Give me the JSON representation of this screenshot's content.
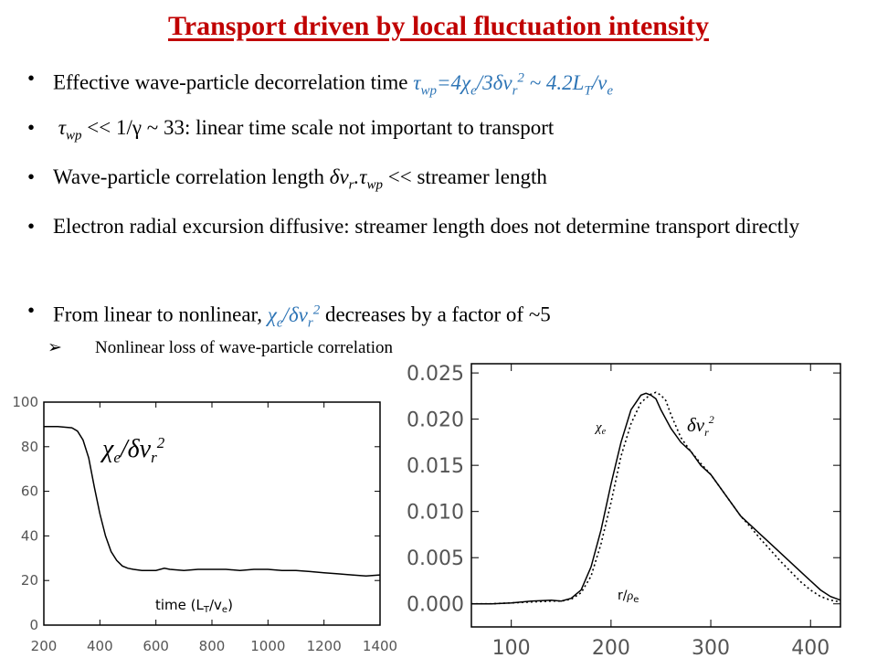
{
  "slide": {
    "title": "Transport driven by local fluctuation intensity",
    "bullets": [
      {
        "text": "Effective wave-particle decorrelation time"
      },
      {
        "lead": "τ",
        "sub": "wp",
        "text": "<< 1/γ ~ 33: linear time scale not important to transport"
      },
      {
        "text": "Wave-particle correlation length"
      },
      {
        "text": "Electron radial excursion diffusive: streamer length does not determine transport directly"
      },
      {
        "text": "From linear to nonlinear,"
      }
    ],
    "bullet1_tail": "τwp=4χe/3δvr2 ~ 4.2LT/ve",
    "bullet3_tail": "δvr.τwp << streamer length",
    "bullet5_tail": "χe/δvr2 decreases by a factor of ~5",
    "sub_bullet": "Nonlinear loss of wave-particle correlation",
    "bullet_glyph": "•",
    "sub_glyph": "➢"
  },
  "colors": {
    "title": "#c00000",
    "accent_blue": "#2e75b6",
    "axis": "#000000"
  },
  "chart_data": [
    {
      "type": "line",
      "title": "",
      "annotation": "χe/δvr2",
      "xlabel": "time (LT/ve)",
      "ylabel": "",
      "xlim": [
        200,
        1400
      ],
      "ylim": [
        0,
        100
      ],
      "xticks": [
        200,
        400,
        600,
        800,
        1000,
        1200,
        1400
      ],
      "yticks": [
        0,
        20,
        40,
        60,
        80,
        100
      ],
      "grid": false,
      "series": [
        {
          "style": "solid",
          "x": [
            200,
            250,
            300,
            320,
            340,
            360,
            380,
            400,
            420,
            440,
            460,
            480,
            500,
            520,
            550,
            600,
            630,
            650,
            700,
            750,
            800,
            850,
            900,
            950,
            1000,
            1050,
            1100,
            1150,
            1200,
            1250,
            1300,
            1350,
            1400
          ],
          "y": [
            89,
            89,
            88.5,
            87,
            83,
            75,
            62,
            50,
            40,
            33,
            29,
            26.5,
            25.5,
            25,
            24.5,
            24.5,
            25.5,
            25,
            24.5,
            25,
            25,
            25,
            24.5,
            25,
            25,
            24.5,
            24.5,
            24,
            23.5,
            23,
            22.5,
            22,
            22.5
          ]
        }
      ]
    },
    {
      "type": "line",
      "title": "",
      "xlabel": "r/ρe",
      "ylabel": "",
      "xlim": [
        60,
        430
      ],
      "ylim": [
        -0.0025,
        0.026
      ],
      "xticks": [
        100,
        200,
        300,
        400
      ],
      "yticks": [
        0.0,
        0.005,
        0.01,
        0.015,
        0.02,
        0.025
      ],
      "ytick_labels": [
        "0.000",
        "0.005",
        "0.010",
        "0.015",
        "0.020",
        "0.025"
      ],
      "xtick_labels": [
        "100",
        "200",
        "300",
        "400"
      ],
      "grid": false,
      "series": [
        {
          "name": "χe",
          "style": "solid",
          "x": [
            60,
            80,
            100,
            120,
            140,
            150,
            160,
            170,
            180,
            190,
            200,
            210,
            220,
            230,
            235,
            240,
            245,
            250,
            260,
            270,
            280,
            290,
            300,
            310,
            320,
            330,
            340,
            350,
            360,
            370,
            380,
            390,
            400,
            410,
            420,
            430
          ],
          "y": [
            0.0,
            0.0,
            0.0001,
            0.0003,
            0.0004,
            0.0003,
            0.0006,
            0.0015,
            0.004,
            0.008,
            0.013,
            0.0175,
            0.021,
            0.0226,
            0.0228,
            0.0226,
            0.0222,
            0.021,
            0.019,
            0.0175,
            0.0165,
            0.015,
            0.014,
            0.0125,
            0.011,
            0.0095,
            0.0085,
            0.0075,
            0.0065,
            0.0055,
            0.0045,
            0.0035,
            0.0025,
            0.0015,
            0.0008,
            0.0004
          ]
        },
        {
          "name": "δvr2",
          "style": "dotted",
          "x": [
            60,
            80,
            100,
            120,
            140,
            150,
            160,
            170,
            180,
            190,
            200,
            210,
            220,
            230,
            240,
            245,
            250,
            255,
            260,
            270,
            280,
            290,
            300,
            310,
            320,
            330,
            340,
            350,
            360,
            370,
            380,
            390,
            400,
            410,
            420,
            430
          ],
          "y": [
            0.0,
            0.0,
            0.0001,
            0.0002,
            0.0003,
            0.0003,
            0.0005,
            0.0012,
            0.003,
            0.0065,
            0.011,
            0.016,
            0.0195,
            0.0218,
            0.0227,
            0.0229,
            0.0226,
            0.022,
            0.0205,
            0.018,
            0.0165,
            0.0152,
            0.014,
            0.0125,
            0.011,
            0.0095,
            0.0083,
            0.007,
            0.0058,
            0.0046,
            0.0035,
            0.0024,
            0.0015,
            0.0008,
            0.0004,
            0.0002
          ]
        }
      ]
    }
  ]
}
